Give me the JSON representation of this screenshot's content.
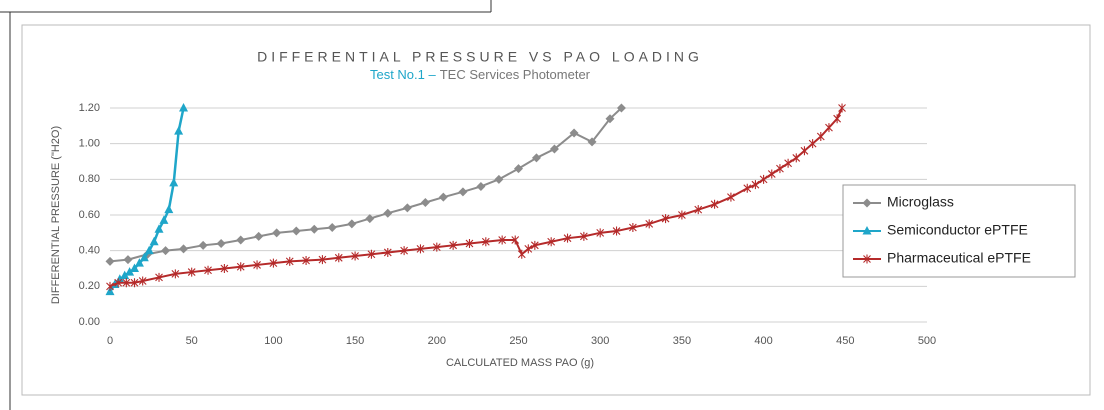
{
  "chart_data": {
    "type": "line",
    "title": "DIFFERENTIAL PRESSURE VS PAO LOADING",
    "subtitle": [
      "Test No.1 –",
      "TEC Services Photometer"
    ],
    "subtitle_colors": [
      "#1fa6c9",
      "#777777"
    ],
    "xlabel": "CALCULATED MASS PAO (g)",
    "ylabel": "DIFFERENTIAL PRESSURE (\"H2O)",
    "xlim": [
      0,
      500
    ],
    "ylim": [
      0,
      1.2
    ],
    "xticks": [
      0,
      50,
      100,
      150,
      200,
      250,
      300,
      350,
      400,
      450,
      500
    ],
    "yticks": [
      {
        "value": 0,
        "label": "0.00"
      },
      {
        "value": 0.2,
        "label": "0.20"
      },
      {
        "value": 0.4,
        "label": "0.40"
      },
      {
        "value": 0.6,
        "label": "0.60"
      },
      {
        "value": 0.8,
        "label": "0.80"
      },
      {
        "value": 1.0,
        "label": "1.00"
      },
      {
        "value": 1.2,
        "label": "1.20"
      }
    ],
    "grid": true,
    "legend": "right",
    "series": [
      {
        "name": "Microglass",
        "color": "#8c8c8c",
        "marker": "diamond",
        "x": [
          0,
          11,
          23,
          34,
          45,
          57,
          68,
          80,
          91,
          102,
          114,
          125,
          136,
          148,
          159,
          170,
          182,
          193,
          204,
          216,
          227,
          238,
          250,
          261,
          272,
          284,
          295,
          306,
          313
        ],
        "values": [
          0.34,
          0.35,
          0.38,
          0.4,
          0.41,
          0.43,
          0.44,
          0.46,
          0.48,
          0.5,
          0.51,
          0.52,
          0.53,
          0.55,
          0.58,
          0.61,
          0.64,
          0.67,
          0.7,
          0.73,
          0.76,
          0.8,
          0.86,
          0.92,
          0.97,
          1.06,
          1.01,
          1.14,
          1.2
        ]
      },
      {
        "name": "Semiconductor ePTFE",
        "color": "#1fa6c9",
        "marker": "triangle",
        "x": [
          0,
          3,
          6,
          9,
          12,
          15,
          18,
          21,
          24,
          27,
          30,
          33,
          36,
          39,
          42,
          45
        ],
        "values": [
          0.17,
          0.21,
          0.24,
          0.26,
          0.28,
          0.3,
          0.33,
          0.36,
          0.4,
          0.45,
          0.52,
          0.57,
          0.63,
          0.78,
          1.07,
          1.2
        ]
      },
      {
        "name": "Pharmaceutical ePTFE",
        "color": "#b52a2a",
        "marker": "star",
        "x": [
          0,
          5,
          10,
          15,
          20,
          30,
          40,
          50,
          60,
          70,
          80,
          90,
          100,
          110,
          120,
          130,
          140,
          150,
          160,
          170,
          180,
          190,
          200,
          210,
          220,
          230,
          240,
          248,
          252,
          256,
          260,
          270,
          280,
          290,
          300,
          310,
          320,
          330,
          340,
          350,
          360,
          370,
          380,
          390,
          395,
          400,
          405,
          410,
          415,
          420,
          425,
          430,
          435,
          440,
          445,
          448
        ],
        "values": [
          0.2,
          0.22,
          0.22,
          0.22,
          0.23,
          0.25,
          0.27,
          0.28,
          0.29,
          0.3,
          0.31,
          0.32,
          0.33,
          0.34,
          0.345,
          0.35,
          0.36,
          0.37,
          0.38,
          0.39,
          0.4,
          0.41,
          0.42,
          0.43,
          0.44,
          0.45,
          0.46,
          0.46,
          0.38,
          0.41,
          0.43,
          0.45,
          0.47,
          0.48,
          0.5,
          0.51,
          0.53,
          0.55,
          0.58,
          0.6,
          0.63,
          0.66,
          0.7,
          0.75,
          0.77,
          0.8,
          0.83,
          0.86,
          0.89,
          0.92,
          0.96,
          1.0,
          1.04,
          1.09,
          1.14,
          1.2
        ]
      }
    ]
  }
}
